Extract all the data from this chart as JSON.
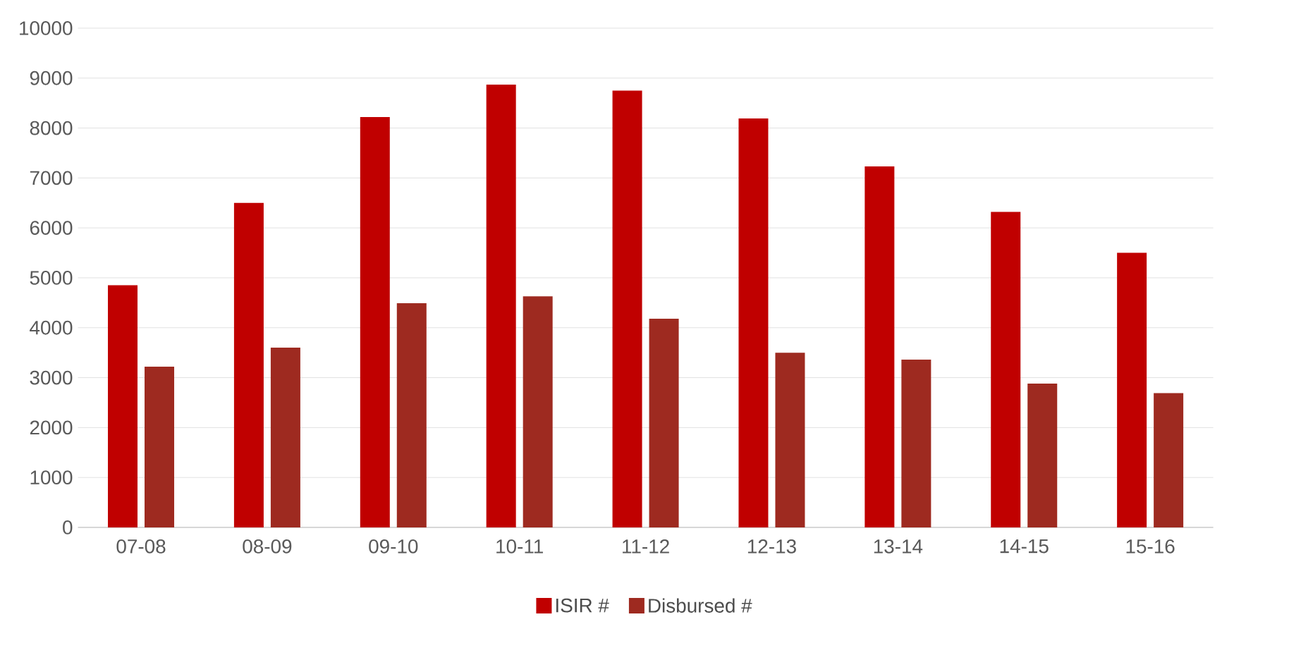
{
  "chart_data": {
    "type": "bar",
    "categories": [
      "07-08",
      "08-09",
      "09-10",
      "10-11",
      "11-12",
      "12-13",
      "13-14",
      "14-15",
      "15-16"
    ],
    "series": [
      {
        "name": "ISIR #",
        "color": "#c00000",
        "values": [
          4850,
          6500,
          8220,
          8870,
          8750,
          8190,
          7230,
          6320,
          5500
        ]
      },
      {
        "name": "Disbursed #",
        "color": "#9e2a20",
        "values": [
          3220,
          3600,
          4490,
          4630,
          4180,
          3500,
          3360,
          2880,
          2690
        ]
      }
    ],
    "ylim": [
      0,
      10000
    ],
    "yticks": [
      0,
      1000,
      2000,
      3000,
      4000,
      5000,
      6000,
      7000,
      8000,
      9000,
      10000
    ],
    "grid": "y",
    "legend": "bottom"
  }
}
